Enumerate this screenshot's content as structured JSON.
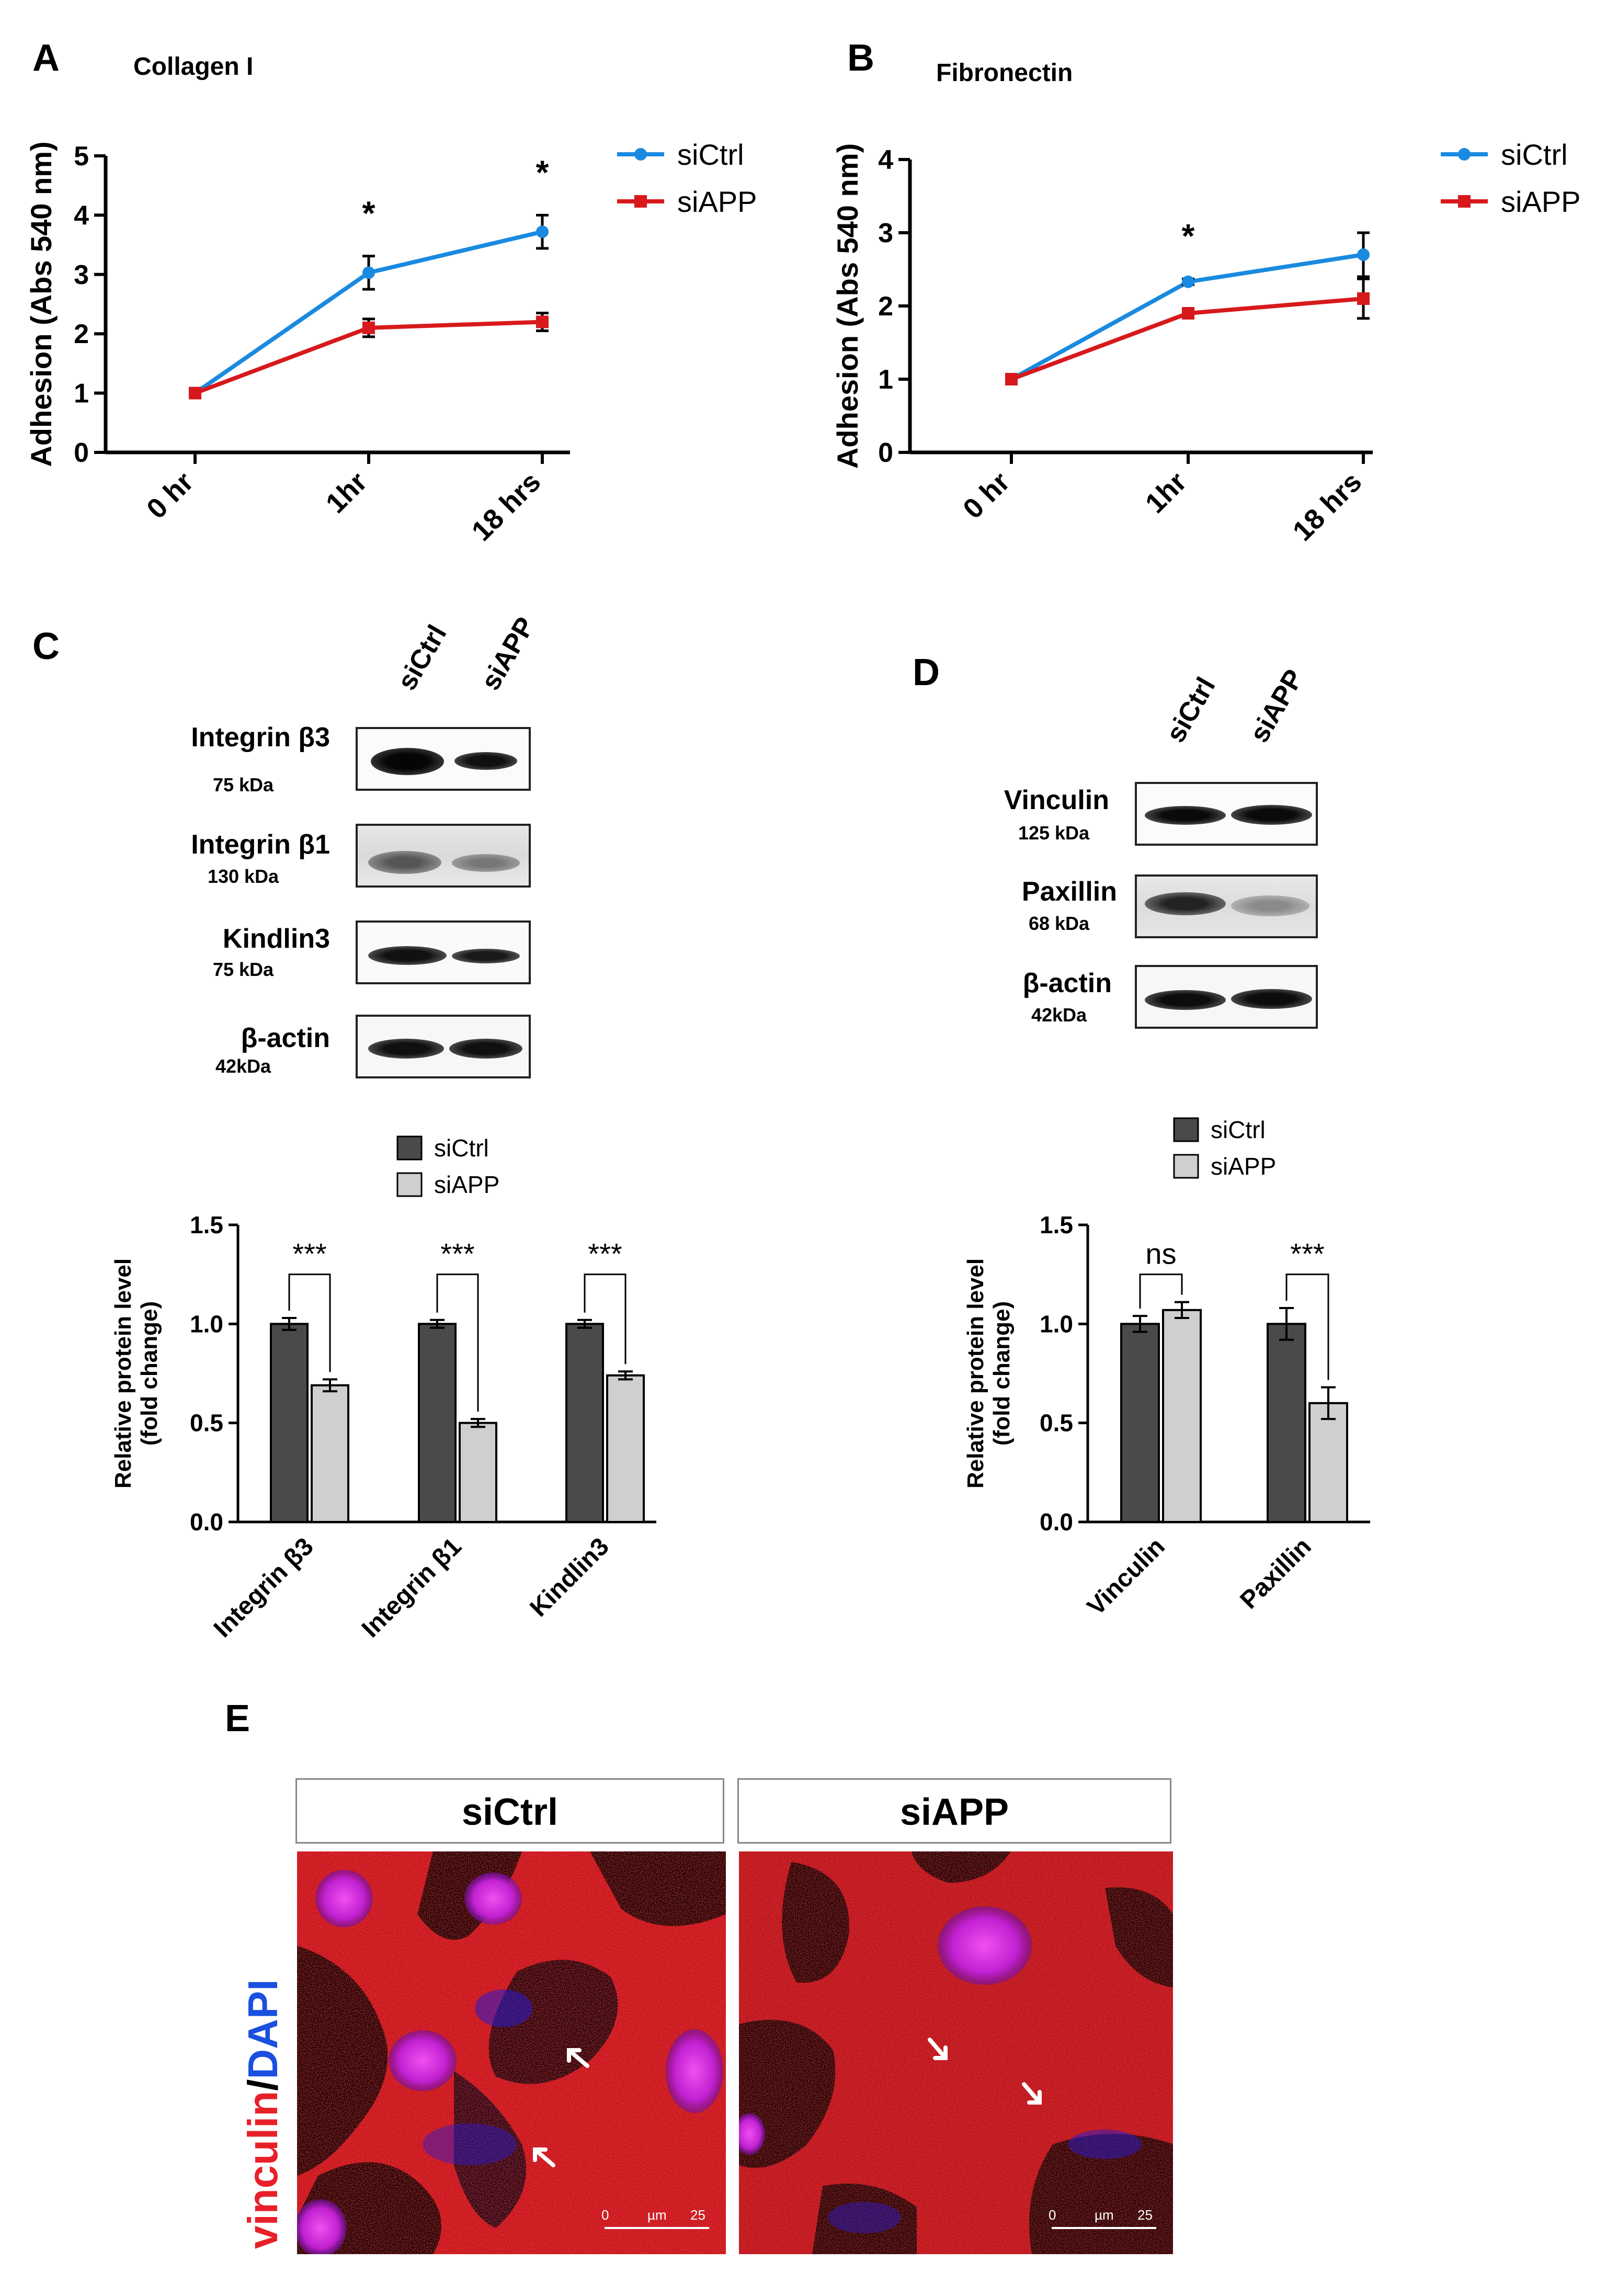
{
  "panels": {
    "A": {
      "letter": "A",
      "title": "Collagen I",
      "chart_data": {
        "type": "line",
        "title": "Collagen I",
        "ylabel": "Adhesion (Abs 540 nm)",
        "xlabel": "",
        "categories": [
          "0 hr",
          "1hr",
          "18 hrs"
        ],
        "ylim": [
          0,
          5
        ],
        "yticks": [
          "0",
          "1",
          "2",
          "3",
          "4",
          "5"
        ],
        "legend_position": "top-right",
        "series": [
          {
            "name": "siCtrl",
            "color": "#1a8ae0",
            "marker": "circle",
            "values": [
              1.0,
              3.03,
              3.72
            ],
            "errors": [
              0.03,
              0.28,
              0.28
            ]
          },
          {
            "name": "siAPP",
            "color": "#d7191c",
            "marker": "square",
            "values": [
              1.0,
              2.1,
              2.2
            ],
            "errors": [
              0.03,
              0.15,
              0.15
            ]
          }
        ],
        "significance": [
          "",
          "*",
          "*"
        ]
      }
    },
    "B": {
      "letter": "B",
      "title": "Fibronectin",
      "chart_data": {
        "type": "line",
        "title": "Fibronectin",
        "ylabel": "Adhesion (Abs 540 nm)",
        "xlabel": "",
        "categories": [
          "0 hr",
          "1hr",
          "18 hrs"
        ],
        "ylim": [
          0,
          4
        ],
        "yticks": [
          "0",
          "1",
          "2",
          "3",
          "4"
        ],
        "legend_position": "top-right",
        "series": [
          {
            "name": "siCtrl",
            "color": "#1a8ae0",
            "marker": "circle",
            "values": [
              1.0,
              2.33,
              2.7
            ],
            "errors": [
              0.03,
              0.04,
              0.3
            ]
          },
          {
            "name": "siAPP",
            "color": "#d7191c",
            "marker": "square",
            "values": [
              1.0,
              1.9,
              2.1
            ],
            "errors": [
              0.03,
              0.04,
              0.27
            ]
          }
        ],
        "significance": [
          "",
          "*",
          ""
        ]
      }
    },
    "C": {
      "letter": "C",
      "lanes": [
        "siCtrl",
        "siAPP"
      ],
      "blots": [
        {
          "name": "Integrin β3",
          "kda": "75 kDa"
        },
        {
          "name": "Integrin β1",
          "kda": "130 kDa"
        },
        {
          "name": "Kindlin3",
          "kda": "75 kDa"
        },
        {
          "name": "β-actin",
          "kda": "42kDa"
        }
      ],
      "chart_data": {
        "type": "bar",
        "categories": [
          "Integrin β3",
          "Integrin β1",
          "Kindlin3"
        ],
        "ylabel": "Relative protein level\n(fold change)",
        "ylabel_lines": [
          "Relative protein level",
          "(fold change)"
        ],
        "ylim": [
          0,
          1.5
        ],
        "yticks": [
          "0.0",
          "0.5",
          "1.0",
          "1.5"
        ],
        "legend_position": "top",
        "series": [
          {
            "name": "siCtrl",
            "color": "#4a4a4a",
            "values": [
              1.0,
              1.0,
              1.0
            ],
            "errors": [
              0.03,
              0.02,
              0.02
            ]
          },
          {
            "name": "siAPP",
            "color": "#cfcfcf",
            "values": [
              0.69,
              0.5,
              0.74
            ],
            "errors": [
              0.03,
              0.02,
              0.02
            ]
          }
        ],
        "significance": [
          "***",
          "***",
          "***"
        ]
      }
    },
    "D": {
      "letter": "D",
      "lanes": [
        "siCtrl",
        "siAPP"
      ],
      "blots": [
        {
          "name": "Vinculin",
          "kda": "125 kDa"
        },
        {
          "name": "Paxillin",
          "kda": "68 kDa"
        },
        {
          "name": "β-actin",
          "kda": "42kDa"
        }
      ],
      "chart_data": {
        "type": "bar",
        "categories": [
          "Vinculin",
          "Paxillin"
        ],
        "ylabel": "Relative protein level\n(fold change)",
        "ylabel_lines": [
          "Relative protein level",
          "(fold change)"
        ],
        "ylim": [
          0,
          1.5
        ],
        "yticks": [
          "0.0",
          "0.5",
          "1.0",
          "1.5"
        ],
        "legend_position": "top",
        "series": [
          {
            "name": "siCtrl",
            "color": "#4a4a4a",
            "values": [
              1.0,
              1.0
            ],
            "errors": [
              0.04,
              0.08
            ]
          },
          {
            "name": "siAPP",
            "color": "#cfcfcf",
            "values": [
              1.07,
              0.6
            ],
            "errors": [
              0.04,
              0.08
            ]
          }
        ],
        "significance": [
          "ns",
          "***"
        ]
      }
    },
    "E": {
      "letter": "E",
      "stain_label_red": "vinculin",
      "stain_label_sep": "/",
      "stain_label_blue": "DAPI",
      "stain_color_red": "#e8202a",
      "stain_color_blue": "#1a4fe0",
      "images": [
        {
          "title": "siCtrl",
          "scale_start": "0",
          "scale_unit": "µm",
          "scale_end": "25"
        },
        {
          "title": "siAPP",
          "scale_start": "0",
          "scale_unit": "µm",
          "scale_end": "25"
        }
      ]
    }
  }
}
